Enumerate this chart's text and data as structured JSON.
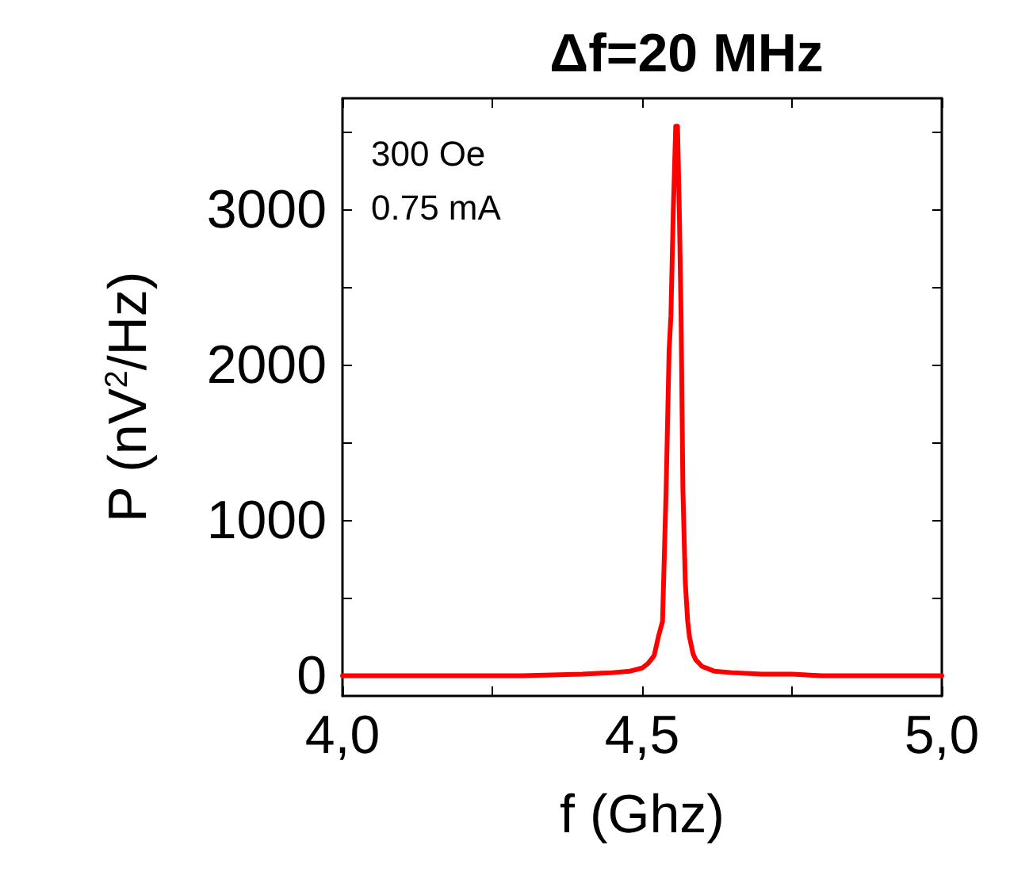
{
  "chart_data": {
    "type": "line",
    "title": "Δf=20 MHz",
    "xlabel": "f (Ghz)",
    "ylabel": "P (nV$^{2}$/Hz)",
    "annotations": [
      "300 Oe",
      "0.75 mA"
    ],
    "x": [
      4.0,
      4.1,
      4.2,
      4.3,
      4.4,
      4.45,
      4.48,
      4.5,
      4.51,
      4.52,
      4.527,
      4.534,
      4.54,
      4.545,
      4.548,
      4.552,
      4.556,
      4.559,
      4.562,
      4.565,
      4.568,
      4.572,
      4.576,
      4.579,
      4.585,
      4.59,
      4.6,
      4.62,
      4.65,
      4.7,
      4.75,
      4.8,
      4.9,
      5.0
    ],
    "series": [
      {
        "color": "#ff0000",
        "values": [
          0,
          0,
          0,
          0,
          10,
          20,
          30,
          50,
          80,
          130,
          250,
          350,
          1200,
          2100,
          2320,
          3000,
          3540,
          3540,
          3000,
          2300,
          1200,
          600,
          350,
          250,
          140,
          100,
          60,
          30,
          20,
          10,
          10,
          0,
          0,
          0
        ]
      }
    ],
    "xlim": [
      4.0,
      5.0
    ],
    "xticks": [
      {
        "value": 4.0,
        "label": "4,0"
      },
      {
        "value": 4.25,
        "label": null
      },
      {
        "value": 4.5,
        "label": "4,5"
      },
      {
        "value": 4.75,
        "label": null
      },
      {
        "value": 5.0,
        "label": "5,0"
      }
    ],
    "ylim": [
      -130,
      3720
    ],
    "yticks": [
      0,
      {
        "value": 500,
        "label": null
      },
      1000,
      {
        "value": 1500,
        "label": null
      },
      2000,
      {
        "value": 2500,
        "label": null
      },
      3000,
      {
        "value": 3500,
        "label": null
      }
    ],
    "marker": "none",
    "line_style": "solid"
  }
}
